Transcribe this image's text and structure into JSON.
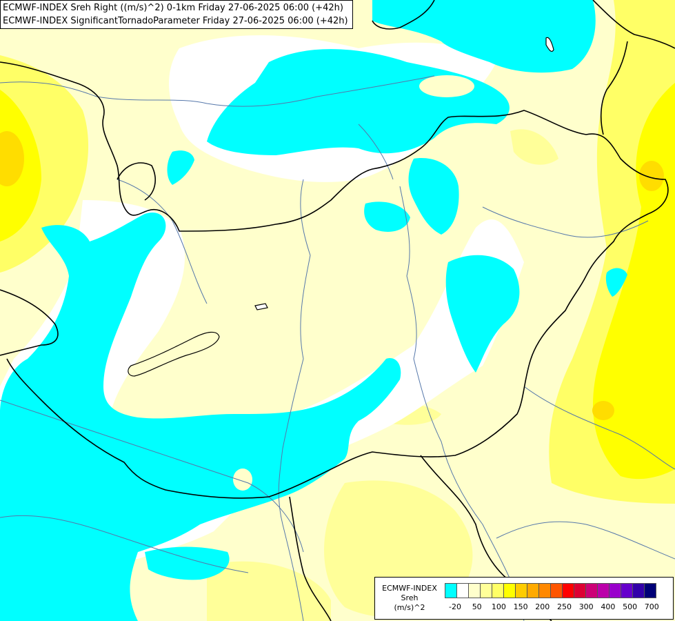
{
  "title": {
    "line1": "ECMWF-INDEX Sreh Right ((m/s)^2) 0-1km Friday 27-06-2025 06:00 (+42h)",
    "line2": "ECMWF-INDEX SignificantTornadoParameter Friday 27-06-2025 06:00 (+42h)"
  },
  "legend": {
    "title_line1": "ECMWF-INDEX",
    "title_line2": "Sreh",
    "title_line3": "(m/s)^2",
    "colors": [
      "#00ffff",
      "#ffffff",
      "#ffffcc",
      "#ffff99",
      "#ffff66",
      "#ffff00",
      "#ffcc00",
      "#ffaa00",
      "#ff8800",
      "#ff5500",
      "#ff0000",
      "#dd0033",
      "#cc0077",
      "#bb00aa",
      "#9900cc",
      "#6600cc",
      "#3300aa",
      "#000077"
    ],
    "ticks": [
      "-20",
      "50",
      "100",
      "150",
      "200",
      "250",
      "300",
      "400",
      "500",
      "700"
    ]
  },
  "palette": {
    "cyan": "#00ffff",
    "white": "#ffffff",
    "pale_yellow": "#ffffcc",
    "light_yellow": "#ffff99",
    "yellow": "#ffff66",
    "strong_yellow": "#ffff00",
    "orange_yellow": "#ffdd00",
    "border": "#000000",
    "river": "#5577aa"
  }
}
